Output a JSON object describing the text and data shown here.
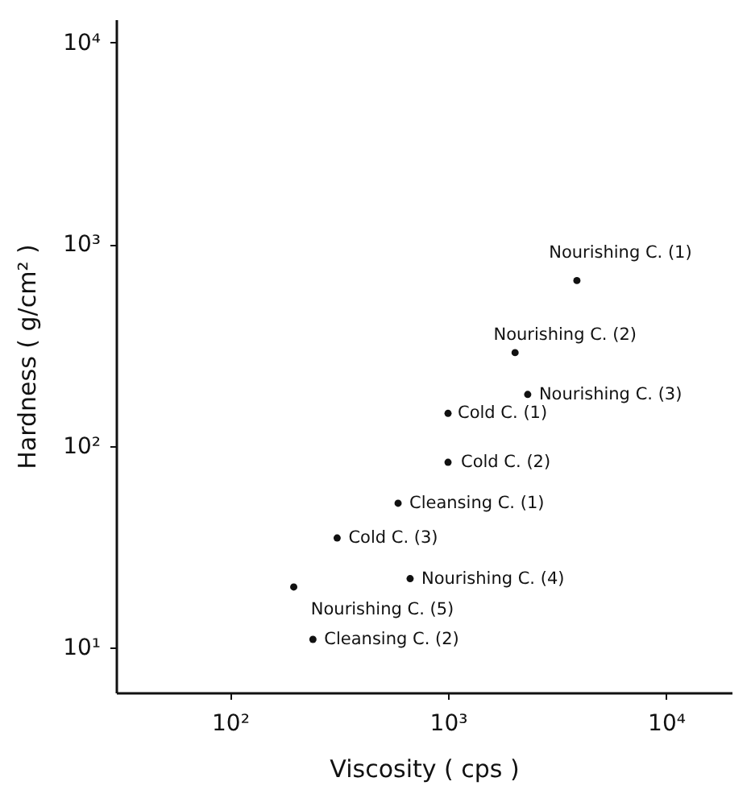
{
  "chart_data": {
    "type": "scatter",
    "xlabel": "Viscosity ( cps )",
    "ylabel": "Hardness ( g/cm² )",
    "log": "xy",
    "grid": false,
    "marker": "circle",
    "xlim": [
      30,
      20000
    ],
    "ylim": [
      6,
      13000
    ],
    "xticks": [
      {
        "value": 100,
        "label": "10²"
      },
      {
        "value": 1000,
        "label": "10³"
      },
      {
        "value": 10000,
        "label": "10⁴"
      }
    ],
    "yticks": [
      {
        "value": 10,
        "label": "10¹"
      },
      {
        "value": 100,
        "label": "10²"
      },
      {
        "value": 1000,
        "label": "10³"
      },
      {
        "value": 10000,
        "label": "10⁴"
      }
    ],
    "x": [
      3900,
      2030,
      2320,
      1000,
      1000,
      590,
      310,
      670,
      196,
      240
    ],
    "series": [
      {
        "color": "#111111",
        "values": [
          660,
          290,
          180,
          145,
          83,
          52,
          35,
          22,
          20,
          11
        ]
      }
    ],
    "annotations": [
      {
        "text": "Nourishing C. (1)",
        "x": 3900,
        "y": 660
      },
      {
        "text": "Nourishing C. (2)",
        "x": 2030,
        "y": 290
      },
      {
        "text": "Nourishing C. (3)",
        "x": 2320,
        "y": 180
      },
      {
        "text": "Cold C. (1)",
        "x": 1000,
        "y": 145
      },
      {
        "text": "Cold C. (2)",
        "x": 1000,
        "y": 83
      },
      {
        "text": "Cleansing C. (1)",
        "x": 590,
        "y": 52
      },
      {
        "text": "Cold C. (3)",
        "x": 310,
        "y": 35
      },
      {
        "text": "Nourishing C. (4)",
        "x": 670,
        "y": 22
      },
      {
        "text": "Nourishing C. (5)",
        "x": 196,
        "y": 20
      },
      {
        "text": "Cleansing C. (2)",
        "x": 240,
        "y": 11
      }
    ]
  }
}
